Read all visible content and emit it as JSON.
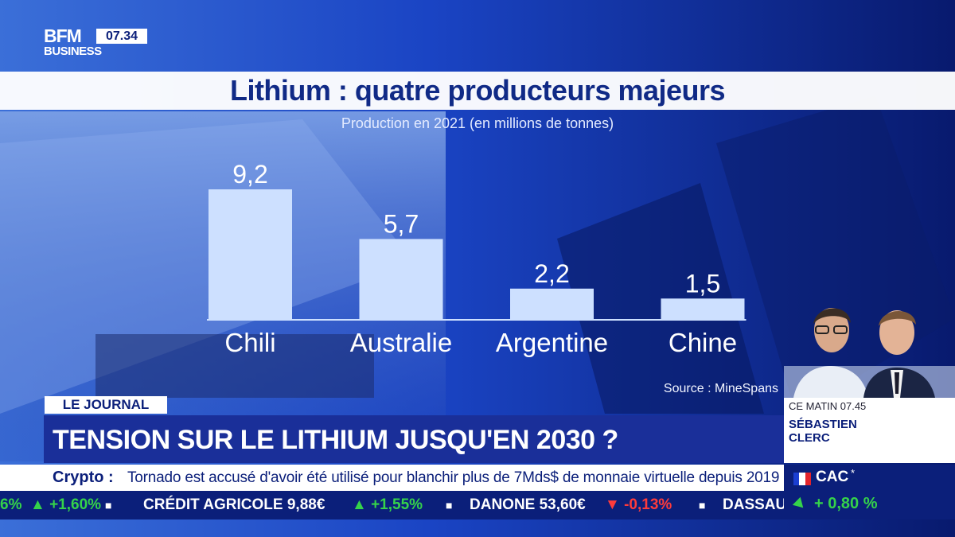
{
  "channel": {
    "logo_top": "BFM",
    "logo_bottom": "BUSINESS",
    "time": "07.34"
  },
  "chart_data": {
    "type": "bar",
    "title": "Lithium : quatre producteurs majeurs",
    "subtitle": "Production en 2021 (en millions de tonnes)",
    "categories": [
      "Chili",
      "Australie",
      "Argentine",
      "Chine"
    ],
    "values": [
      9.2,
      5.7,
      2.2,
      1.5
    ],
    "value_labels": [
      "9,2",
      "5,7",
      "2,2",
      "1,5"
    ],
    "ylim": [
      0,
      9.2
    ],
    "source": "Source : MineSpans",
    "bar_color": "#cde0ff",
    "grid": false
  },
  "presenter": {
    "time": "CE MATIN 07.45",
    "name": "SÉBASTIEN CLERC"
  },
  "program_tag": "LE JOURNAL",
  "headline": "TENSION SUR LE LITHIUM JUSQU'EN 2030 ?",
  "ticker": {
    "label": "Crypto :",
    "text": "Tornado est accusé d'avoir été utilisé pour blanchir plus de 7Mds$ de monnaie virtuelle depuis 2019"
  },
  "stocks": [
    {
      "text": "6%",
      "kind": "up"
    },
    {
      "text": "▲ +1,60%",
      "kind": "up"
    },
    {
      "text": "■",
      "kind": "sep"
    },
    {
      "text": "CRÉDIT AGRICOLE 9,88€",
      "kind": "name"
    },
    {
      "text": "▲ +1,55%",
      "kind": "up"
    },
    {
      "text": "■",
      "kind": "sep"
    },
    {
      "text": "DANONE 53,60€",
      "kind": "name"
    },
    {
      "text": "▼ -0,13%",
      "kind": "down"
    },
    {
      "text": "■",
      "kind": "sep"
    },
    {
      "text": "DASSAU",
      "kind": "name"
    }
  ],
  "index": {
    "name": "CAC",
    "star": "*",
    "value": "+ 0,80 %"
  },
  "colors": {
    "navy": "#0b1f7a",
    "headline_bg": "#1a2f99",
    "up": "#35d34a",
    "down": "#ff3b3b"
  }
}
